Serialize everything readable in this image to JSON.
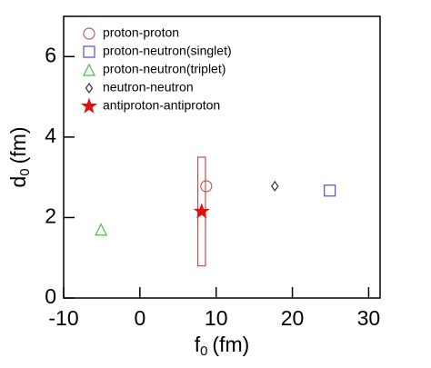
{
  "chart_data": {
    "type": "scatter",
    "x_label": {
      "symbol": "f",
      "subscript": "0",
      "unit": "(fm)"
    },
    "y_label": {
      "symbol": "d",
      "subscript": "0",
      "unit": "(fm)"
    },
    "xlim": [
      -10,
      31.5
    ],
    "ylim": [
      0,
      7
    ],
    "xticks": [
      -10,
      0,
      10,
      20,
      30
    ],
    "yticks": [
      0,
      2,
      4,
      6
    ],
    "legend": "top-left",
    "series": [
      {
        "name": "proton-proton",
        "color": "#b5625a",
        "marker": "circle",
        "x": [
          8.7
        ],
        "y": [
          2.78
        ]
      },
      {
        "name": "proton-neutron(singlet)",
        "color": "#5050c8",
        "marker": "square",
        "x": [
          24.9
        ],
        "y": [
          2.67
        ]
      },
      {
        "name": "proton-neutron(triplet)",
        "color": "#50b850",
        "marker": "triangle",
        "x": [
          -5.1
        ],
        "y": [
          1.7
        ]
      },
      {
        "name": "neutron-neutron",
        "color": "#333333",
        "marker": "diamond",
        "x": [
          17.7
        ],
        "y": [
          2.78
        ]
      },
      {
        "name": "antiproton-antiproton",
        "color": "#e01010",
        "marker": "star",
        "x": [
          8.1
        ],
        "y": [
          2.15
        ],
        "x_range": [
          7.6,
          8.6
        ],
        "y_range": [
          0.8,
          3.5
        ],
        "range_color": "#c0504d"
      }
    ]
  }
}
